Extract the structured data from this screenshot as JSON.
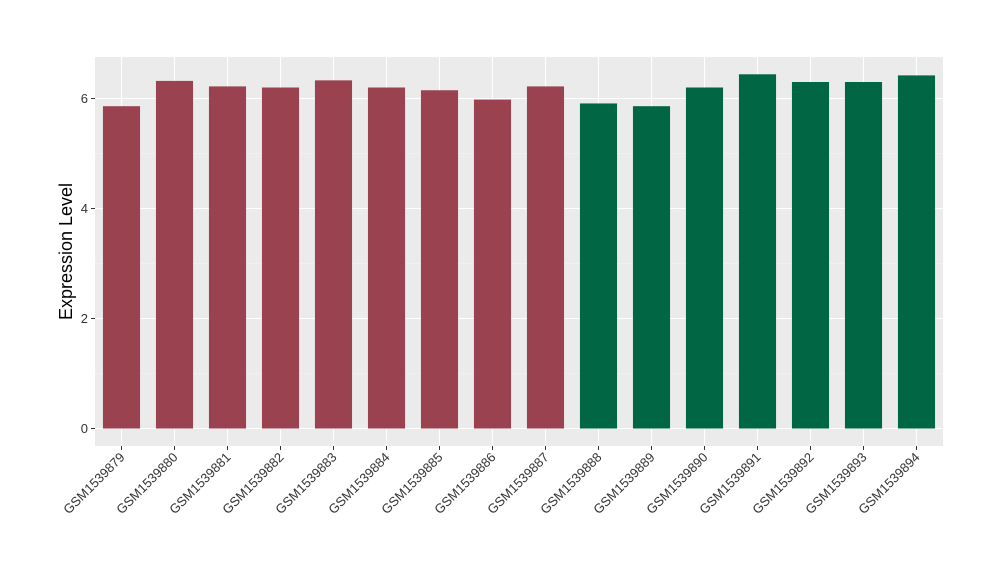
{
  "chart_data": {
    "type": "bar",
    "ylabel": "Expression Level",
    "xlabel": "",
    "ylim": [
      0,
      6.8
    ],
    "yticks": [
      0,
      2,
      4,
      6
    ],
    "grid": true,
    "legend": "none",
    "panel_background": "#EBEBEB",
    "colors": {
      "group1": "#9A4250",
      "group2": "#006644"
    },
    "categories": [
      "GSM1539879",
      "GSM1539880",
      "GSM1539881",
      "GSM1539882",
      "GSM1539883",
      "GSM1539884",
      "GSM1539885",
      "GSM1539886",
      "GSM1539887",
      "GSM1539888",
      "GSM1539889",
      "GSM1539890",
      "GSM1539891",
      "GSM1539892",
      "GSM1539893",
      "GSM1539894"
    ],
    "values": [
      5.86,
      6.32,
      6.22,
      6.2,
      6.33,
      6.2,
      6.15,
      5.98,
      6.22,
      5.91,
      5.86,
      6.2,
      6.44,
      6.3,
      6.3,
      6.42
    ],
    "groups": [
      "group1",
      "group1",
      "group1",
      "group1",
      "group1",
      "group1",
      "group1",
      "group1",
      "group1",
      "group2",
      "group2",
      "group2",
      "group2",
      "group2",
      "group2",
      "group2"
    ]
  }
}
